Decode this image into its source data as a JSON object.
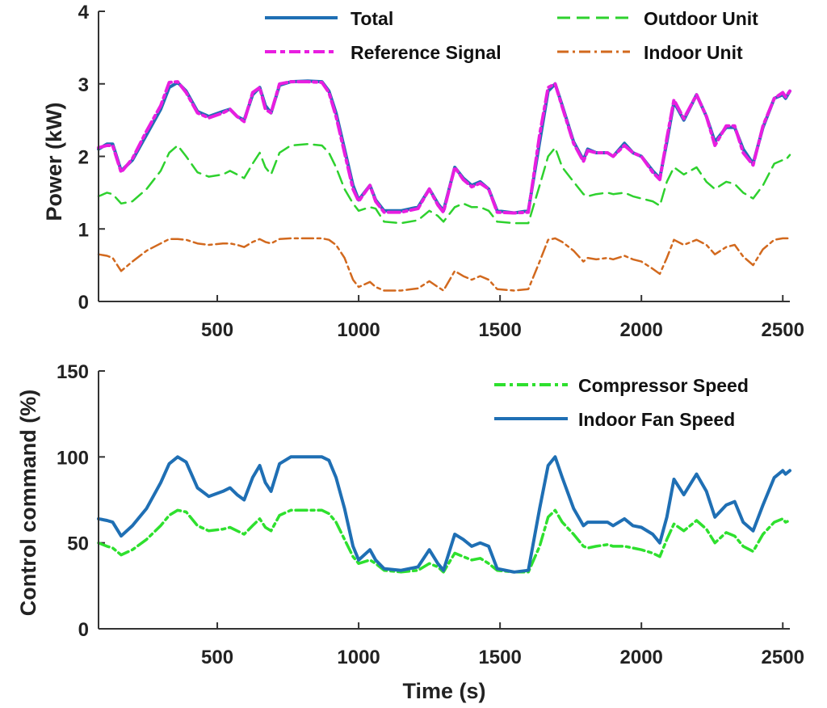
{
  "chart_data": [
    {
      "type": "line",
      "title": "",
      "xlabel": "",
      "ylabel": "Power (kW)",
      "xlim": [
        80,
        2525
      ],
      "ylim": [
        0,
        4
      ],
      "xticks": [
        500,
        1000,
        1500,
        2000,
        2500
      ],
      "xtick_labels": [
        "500",
        "1000",
        "1500",
        "2000",
        "2500"
      ],
      "yticks": [
        0,
        1,
        2,
        3,
        4
      ],
      "ytick_labels": [
        "0",
        "1",
        "2",
        "3",
        "4"
      ],
      "grid": false,
      "legend_position": "top",
      "x": [
        80,
        110,
        130,
        160,
        200,
        250,
        300,
        330,
        360,
        390,
        430,
        470,
        520,
        545,
        570,
        595,
        625,
        650,
        670,
        690,
        720,
        760,
        820,
        870,
        895,
        920,
        950,
        980,
        1000,
        1040,
        1060,
        1090,
        1150,
        1210,
        1250,
        1280,
        1300,
        1340,
        1370,
        1400,
        1430,
        1460,
        1490,
        1550,
        1600,
        1640,
        1670,
        1695,
        1720,
        1760,
        1795,
        1810,
        1840,
        1880,
        1900,
        1940,
        1970,
        2000,
        2040,
        2065,
        2090,
        2115,
        2150,
        2195,
        2230,
        2260,
        2300,
        2330,
        2360,
        2395,
        2430,
        2470,
        2500,
        2510,
        2525
      ],
      "series": [
        {
          "name": "Total",
          "style": "solid",
          "color": "#1f6fb4",
          "values": [
            2.1,
            2.17,
            2.17,
            1.8,
            1.95,
            2.3,
            2.65,
            2.95,
            3.02,
            2.9,
            2.62,
            2.55,
            2.62,
            2.65,
            2.55,
            2.5,
            2.85,
            2.95,
            2.7,
            2.6,
            2.98,
            3.03,
            3.04,
            3.03,
            2.9,
            2.6,
            2.1,
            1.6,
            1.4,
            1.6,
            1.4,
            1.25,
            1.25,
            1.3,
            1.55,
            1.35,
            1.25,
            1.85,
            1.7,
            1.6,
            1.65,
            1.55,
            1.25,
            1.22,
            1.25,
            2.2,
            2.9,
            3.0,
            2.7,
            2.2,
            1.95,
            2.1,
            2.05,
            2.05,
            2.0,
            2.18,
            2.05,
            2.0,
            1.8,
            1.7,
            2.2,
            2.75,
            2.5,
            2.85,
            2.55,
            2.2,
            2.4,
            2.4,
            2.1,
            1.9,
            2.4,
            2.8,
            2.85,
            2.8,
            2.9
          ]
        },
        {
          "name": "Reference Signal",
          "style": "dashdot",
          "color": "#e81ee0",
          "values": [
            2.12,
            2.15,
            2.15,
            1.78,
            1.97,
            2.35,
            2.7,
            3.02,
            3.03,
            2.88,
            2.6,
            2.53,
            2.6,
            2.65,
            2.55,
            2.48,
            2.88,
            2.95,
            2.65,
            2.6,
            3.0,
            3.03,
            3.03,
            3.02,
            2.88,
            2.55,
            2.05,
            1.55,
            1.38,
            1.6,
            1.38,
            1.23,
            1.23,
            1.28,
            1.55,
            1.33,
            1.23,
            1.85,
            1.68,
            1.58,
            1.63,
            1.55,
            1.23,
            1.22,
            1.23,
            2.3,
            2.95,
            3.0,
            2.68,
            2.18,
            1.93,
            2.08,
            2.05,
            2.05,
            2.0,
            2.15,
            2.05,
            2.0,
            1.78,
            1.68,
            2.25,
            2.78,
            2.52,
            2.85,
            2.55,
            2.15,
            2.42,
            2.42,
            2.05,
            1.88,
            2.42,
            2.8,
            2.88,
            2.82,
            2.9
          ]
        },
        {
          "name": "Outdoor Unit",
          "style": "dashed",
          "color": "#2ed12e",
          "values": [
            1.45,
            1.5,
            1.48,
            1.35,
            1.38,
            1.55,
            1.8,
            2.05,
            2.15,
            2.0,
            1.78,
            1.72,
            1.75,
            1.8,
            1.75,
            1.7,
            1.9,
            2.05,
            1.85,
            1.75,
            2.05,
            2.15,
            2.17,
            2.15,
            2.05,
            1.85,
            1.55,
            1.35,
            1.25,
            1.3,
            1.28,
            1.1,
            1.08,
            1.12,
            1.25,
            1.18,
            1.1,
            1.3,
            1.35,
            1.3,
            1.3,
            1.25,
            1.1,
            1.08,
            1.08,
            1.6,
            2.0,
            2.12,
            1.85,
            1.65,
            1.48,
            1.45,
            1.48,
            1.5,
            1.48,
            1.5,
            1.45,
            1.42,
            1.38,
            1.32,
            1.65,
            1.85,
            1.75,
            1.85,
            1.65,
            1.55,
            1.65,
            1.62,
            1.5,
            1.42,
            1.6,
            1.9,
            1.95,
            1.95,
            2.02
          ]
        },
        {
          "name": "Indoor Unit",
          "style": "dashdot",
          "color": "#d2691e",
          "values": [
            0.65,
            0.63,
            0.6,
            0.42,
            0.55,
            0.7,
            0.8,
            0.86,
            0.86,
            0.85,
            0.8,
            0.78,
            0.8,
            0.8,
            0.78,
            0.75,
            0.82,
            0.86,
            0.82,
            0.8,
            0.86,
            0.87,
            0.87,
            0.87,
            0.85,
            0.78,
            0.6,
            0.3,
            0.2,
            0.27,
            0.2,
            0.15,
            0.15,
            0.18,
            0.28,
            0.2,
            0.15,
            0.42,
            0.35,
            0.3,
            0.35,
            0.3,
            0.17,
            0.15,
            0.17,
            0.55,
            0.85,
            0.87,
            0.82,
            0.7,
            0.55,
            0.6,
            0.58,
            0.6,
            0.58,
            0.63,
            0.58,
            0.55,
            0.45,
            0.38,
            0.6,
            0.85,
            0.78,
            0.85,
            0.78,
            0.65,
            0.75,
            0.78,
            0.62,
            0.5,
            0.72,
            0.85,
            0.87,
            0.87,
            0.87
          ]
        }
      ]
    },
    {
      "type": "line",
      "title": "",
      "xlabel": "Time (s)",
      "ylabel": "Control command (%)",
      "xlim": [
        80,
        2525
      ],
      "ylim": [
        0,
        150
      ],
      "xticks": [
        500,
        1000,
        1500,
        2000,
        2500
      ],
      "xtick_labels": [
        "500",
        "1000",
        "1500",
        "2000",
        "2500"
      ],
      "yticks": [
        0,
        50,
        100,
        150
      ],
      "ytick_labels": [
        "0",
        "50",
        "100",
        "150"
      ],
      "grid": false,
      "legend_position": "top-right",
      "x": [
        80,
        110,
        130,
        160,
        200,
        250,
        300,
        330,
        360,
        390,
        430,
        470,
        520,
        545,
        570,
        595,
        625,
        650,
        670,
        690,
        720,
        760,
        820,
        870,
        895,
        920,
        950,
        980,
        1000,
        1040,
        1060,
        1090,
        1150,
        1210,
        1250,
        1280,
        1300,
        1340,
        1370,
        1400,
        1430,
        1460,
        1490,
        1550,
        1600,
        1640,
        1670,
        1695,
        1720,
        1760,
        1795,
        1810,
        1840,
        1880,
        1900,
        1940,
        1970,
        2000,
        2040,
        2065,
        2090,
        2115,
        2150,
        2195,
        2230,
        2260,
        2300,
        2330,
        2360,
        2395,
        2430,
        2470,
        2500,
        2510,
        2525
      ],
      "series": [
        {
          "name": "Compressor Speed",
          "style": "dashdot",
          "color": "#2ee02e",
          "values": [
            50,
            48,
            47,
            43,
            46,
            52,
            60,
            66,
            69,
            68,
            60,
            57,
            58,
            59,
            57,
            55,
            60,
            64,
            59,
            57,
            66,
            69,
            69,
            69,
            67,
            62,
            52,
            42,
            38,
            40,
            38,
            34,
            33,
            34,
            38,
            36,
            33,
            44,
            42,
            40,
            41,
            38,
            34,
            33,
            33,
            48,
            65,
            69,
            62,
            55,
            48,
            47,
            48,
            49,
            48,
            48,
            47,
            46,
            44,
            42,
            52,
            61,
            57,
            63,
            58,
            50,
            56,
            54,
            48,
            45,
            55,
            62,
            64,
            62,
            63
          ]
        },
        {
          "name": "Indoor Fan Speed",
          "style": "solid",
          "color": "#1f6fb4",
          "values": [
            64,
            63,
            62,
            54,
            60,
            70,
            85,
            96,
            100,
            97,
            82,
            77,
            80,
            82,
            78,
            75,
            88,
            95,
            85,
            80,
            96,
            100,
            100,
            100,
            98,
            88,
            70,
            48,
            40,
            46,
            40,
            35,
            34,
            36,
            46,
            38,
            34,
            55,
            52,
            48,
            50,
            48,
            35,
            33,
            34,
            70,
            95,
            100,
            88,
            70,
            60,
            62,
            62,
            62,
            60,
            64,
            60,
            59,
            55,
            50,
            65,
            87,
            78,
            90,
            80,
            65,
            72,
            74,
            62,
            57,
            72,
            88,
            92,
            90,
            92
          ]
        }
      ]
    }
  ]
}
